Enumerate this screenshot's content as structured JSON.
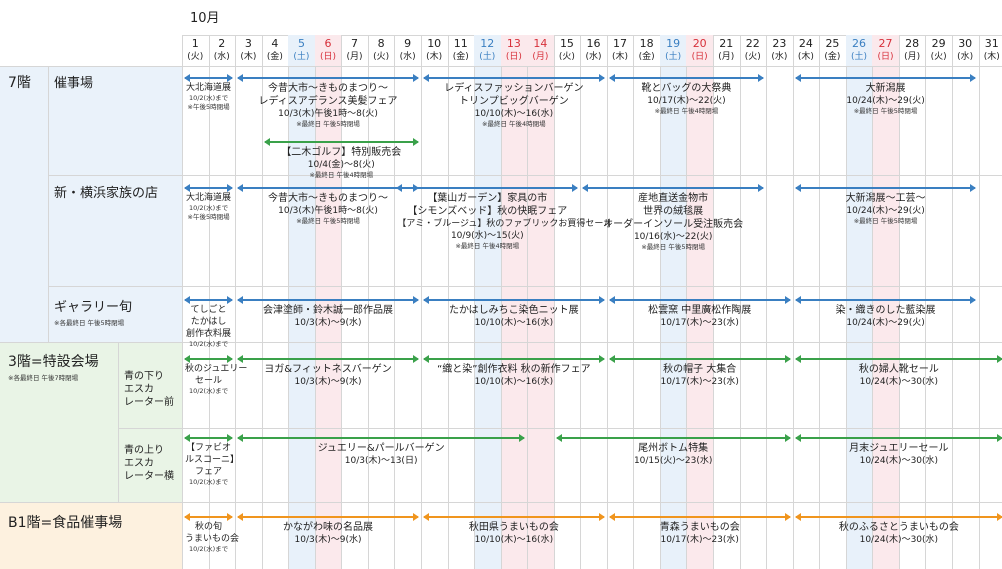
{
  "colors": {
    "blue_arrow": "#3a7fc1",
    "green_arrow": "#3aa14a",
    "orange_arrow": "#f0951e",
    "sat_text": "#3a7fc1",
    "sun_text": "#d7303a",
    "sat_band": "#e8f1fa",
    "sun_band": "#fbe9ec",
    "floor7_bg": "#eaf2fa",
    "floor3_bg": "#e9f4e6",
    "floorB1_bg": "#fdf1df"
  },
  "month": "10月",
  "days": [
    {
      "d": "1",
      "w": "(火)",
      "t": "n"
    },
    {
      "d": "2",
      "w": "(水)",
      "t": "n"
    },
    {
      "d": "3",
      "w": "(木)",
      "t": "n"
    },
    {
      "d": "4",
      "w": "(金)",
      "t": "n"
    },
    {
      "d": "5",
      "w": "(土)",
      "t": "sat"
    },
    {
      "d": "6",
      "w": "(日)",
      "t": "sun"
    },
    {
      "d": "7",
      "w": "(月)",
      "t": "n"
    },
    {
      "d": "8",
      "w": "(火)",
      "t": "n"
    },
    {
      "d": "9",
      "w": "(水)",
      "t": "n"
    },
    {
      "d": "10",
      "w": "(木)",
      "t": "n"
    },
    {
      "d": "11",
      "w": "(金)",
      "t": "n"
    },
    {
      "d": "12",
      "w": "(土)",
      "t": "sat"
    },
    {
      "d": "13",
      "w": "(日)",
      "t": "sun"
    },
    {
      "d": "14",
      "w": "(月)",
      "t": "sun"
    },
    {
      "d": "15",
      "w": "(火)",
      "t": "n"
    },
    {
      "d": "16",
      "w": "(水)",
      "t": "n"
    },
    {
      "d": "17",
      "w": "(木)",
      "t": "n"
    },
    {
      "d": "18",
      "w": "(金)",
      "t": "n"
    },
    {
      "d": "19",
      "w": "(土)",
      "t": "sat"
    },
    {
      "d": "20",
      "w": "(日)",
      "t": "sun"
    },
    {
      "d": "21",
      "w": "(月)",
      "t": "n"
    },
    {
      "d": "22",
      "w": "(火)",
      "t": "n"
    },
    {
      "d": "23",
      "w": "(水)",
      "t": "n"
    },
    {
      "d": "24",
      "w": "(木)",
      "t": "n"
    },
    {
      "d": "25",
      "w": "(金)",
      "t": "n"
    },
    {
      "d": "26",
      "w": "(土)",
      "t": "sat"
    },
    {
      "d": "27",
      "w": "(日)",
      "t": "sun"
    },
    {
      "d": "28",
      "w": "(月)",
      "t": "n"
    },
    {
      "d": "29",
      "w": "(火)",
      "t": "n"
    },
    {
      "d": "30",
      "w": "(水)",
      "t": "n"
    },
    {
      "d": "31",
      "w": "(木)",
      "t": "n"
    }
  ],
  "floors": {
    "f7": {
      "label": "7階"
    },
    "f3": {
      "label": "3階=特設会場",
      "note": "※各最終日 午後7時閉場"
    },
    "fb1": {
      "label": "B1階=食品催事場"
    }
  },
  "venues": {
    "saijijo": {
      "label": "催事場"
    },
    "shin_yokohama": {
      "label": "新・横浜家族の店"
    },
    "gallery": {
      "label": "ギャラリー旬",
      "note": "※各最終日 午後5時閉場"
    },
    "down_escalator": {
      "label": "青の下り\nエスカ\nレーター前"
    },
    "up_escalator": {
      "label": "青の上り\nエスカ\nレーター横"
    }
  },
  "events": [
    {
      "row": "saijijo",
      "color": "blue",
      "from": 1,
      "to": 2,
      "title": "",
      "lines": [
        {
          "k": "ed",
          "v": "大北海道展"
        },
        {
          "k": "en",
          "v": "10/2(水)まで"
        },
        {
          "k": "en",
          "v": "※午後5時閉場"
        }
      ]
    },
    {
      "row": "saijijo",
      "color": "blue",
      "from": 3,
      "to": 9,
      "lines": [
        {
          "k": "et",
          "v": "今昔大市～きものまつり～"
        },
        {
          "k": "et",
          "v": "レディスアデランス美髪フェア"
        },
        {
          "k": "ed",
          "v": "10/3(木)午後1時～8(火)"
        },
        {
          "k": "en",
          "v": "※最終日 午後5時閉場"
        }
      ]
    },
    {
      "row": "saijijo2",
      "color": "green",
      "from": 4,
      "to": 9,
      "lines": [
        {
          "k": "et",
          "v": "【二木ゴルフ】特別販売会"
        },
        {
          "k": "ed",
          "v": "10/4(金)～8(火)"
        },
        {
          "k": "en",
          "v": "※最終日 午後4時閉場"
        }
      ]
    },
    {
      "row": "saijijo",
      "color": "blue",
      "from": 10,
      "to": 16,
      "lines": [
        {
          "k": "et",
          "v": "レディスファッションバーゲン"
        },
        {
          "k": "et",
          "v": "トリンプビッグバーゲン"
        },
        {
          "k": "ed",
          "v": "10/10(木)～16(水)"
        },
        {
          "k": "en",
          "v": "※最終日 午後4時閉場"
        }
      ]
    },
    {
      "row": "saijijo",
      "color": "blue",
      "from": 17,
      "to": 22,
      "lines": [
        {
          "k": "et",
          "v": "靴とバッグの大祭典"
        },
        {
          "k": "ed",
          "v": "10/17(木)～22(火)"
        },
        {
          "k": "en",
          "v": "※最終日 午後4時閉場"
        }
      ]
    },
    {
      "row": "saijijo",
      "color": "blue",
      "from": 24,
      "to": 30,
      "lines": [
        {
          "k": "et",
          "v": "大新潟展"
        },
        {
          "k": "ed",
          "v": "10/24(木)～29(火)"
        },
        {
          "k": "en",
          "v": "※最終日 午後5時閉場"
        }
      ]
    },
    {
      "row": "shin_yokohama",
      "color": "blue",
      "from": 1,
      "to": 2,
      "lines": [
        {
          "k": "ed",
          "v": "大北海道展"
        },
        {
          "k": "en",
          "v": "10/2(水)まで"
        },
        {
          "k": "en",
          "v": "※午後5時閉場"
        }
      ]
    },
    {
      "row": "shin_yokohama",
      "color": "blue",
      "from": 3,
      "to": 9,
      "lines": [
        {
          "k": "et",
          "v": "今昔大市～きものまつり～"
        },
        {
          "k": "ed",
          "v": "10/3(木)午後1時～8(火)"
        },
        {
          "k": "en",
          "v": "※最終日 午後5時閉場"
        }
      ]
    },
    {
      "row": "shin_yokohama",
      "color": "blue",
      "from": 9,
      "to": 15,
      "lines": [
        {
          "k": "et",
          "v": "【葉山ガーデン】家具の市"
        },
        {
          "k": "et",
          "v": "【シモンズベッド】秋の快眠フェア"
        },
        {
          "k": "ed",
          "v": "【アミ・ブルージュ】秋のファブリックお買得セール"
        },
        {
          "k": "ed",
          "v": "10/9(水)～15(火)"
        },
        {
          "k": "en",
          "v": "※最終日 午後4時閉場"
        }
      ]
    },
    {
      "row": "shin_yokohama",
      "color": "blue",
      "from": 16,
      "to": 22,
      "lines": [
        {
          "k": "et",
          "v": "産地直送金物市"
        },
        {
          "k": "et",
          "v": "世界の絨毯展"
        },
        {
          "k": "et",
          "v": "オーダーインソール受注販売会"
        },
        {
          "k": "ed",
          "v": "10/16(水)～22(火)"
        },
        {
          "k": "en",
          "v": "※最終日 午後5時閉場"
        }
      ]
    },
    {
      "row": "shin_yokohama",
      "color": "blue",
      "from": 24,
      "to": 30,
      "lines": [
        {
          "k": "et",
          "v": "大新潟展～工芸～"
        },
        {
          "k": "ed",
          "v": "10/24(木)～29(火)"
        },
        {
          "k": "en",
          "v": "※最終日 午後5時閉場"
        }
      ]
    },
    {
      "row": "gallery",
      "color": "blue",
      "from": 1,
      "to": 2,
      "lines": [
        {
          "k": "ed",
          "v": "てしごと"
        },
        {
          "k": "ed",
          "v": "たかはし"
        },
        {
          "k": "ed",
          "v": "創作衣料展"
        },
        {
          "k": "en",
          "v": "10/2(水)まで"
        }
      ]
    },
    {
      "row": "gallery",
      "color": "blue",
      "from": 3,
      "to": 9,
      "lines": [
        {
          "k": "et",
          "v": "会津塗師・鈴木誠一郎作品展"
        },
        {
          "k": "ed",
          "v": "10/3(木)～9(水)"
        }
      ]
    },
    {
      "row": "gallery",
      "color": "blue",
      "from": 10,
      "to": 16,
      "lines": [
        {
          "k": "et",
          "v": "たかはしみちこ染色ニット展"
        },
        {
          "k": "ed",
          "v": "10/10(木)～16(水)"
        }
      ]
    },
    {
      "row": "gallery",
      "color": "blue",
      "from": 17,
      "to": 23,
      "lines": [
        {
          "k": "et",
          "v": "松雲窯 中里廣松作陶展"
        },
        {
          "k": "ed",
          "v": "10/17(木)～23(水)"
        }
      ]
    },
    {
      "row": "gallery",
      "color": "blue",
      "from": 24,
      "to": 30,
      "lines": [
        {
          "k": "et",
          "v": "染・織きのした藍染展"
        },
        {
          "k": "ed",
          "v": "10/24(木)～29(火)"
        }
      ]
    },
    {
      "row": "down_escalator",
      "color": "green",
      "from": 1,
      "to": 2,
      "lines": [
        {
          "k": "ed",
          "v": "秋のジュエリー"
        },
        {
          "k": "ed",
          "v": "セール"
        },
        {
          "k": "en",
          "v": "10/2(水)まで"
        }
      ]
    },
    {
      "row": "down_escalator",
      "color": "green",
      "from": 3,
      "to": 9,
      "lines": [
        {
          "k": "et",
          "v": "ヨガ&フィットネスバーゲン"
        },
        {
          "k": "ed",
          "v": "10/3(木)～9(水)"
        }
      ]
    },
    {
      "row": "down_escalator",
      "color": "green",
      "from": 10,
      "to": 16,
      "lines": [
        {
          "k": "et",
          "v": "“織と染”創作衣料 秋の新作フェア"
        },
        {
          "k": "ed",
          "v": "10/10(木)～16(水)"
        }
      ]
    },
    {
      "row": "down_escalator",
      "color": "green",
      "from": 17,
      "to": 23,
      "lines": [
        {
          "k": "et",
          "v": "秋の帽子 大集合"
        },
        {
          "k": "ed",
          "v": "10/17(木)～23(水)"
        }
      ]
    },
    {
      "row": "down_escalator",
      "color": "green",
      "from": 24,
      "to": 31,
      "lines": [
        {
          "k": "et",
          "v": "秋の婦人靴セール"
        },
        {
          "k": "ed",
          "v": "10/24(木)～30(水)"
        }
      ]
    },
    {
      "row": "up_escalator",
      "color": "green",
      "from": 1,
      "to": 2,
      "lines": [
        {
          "k": "ed",
          "v": "【ファビオ"
        },
        {
          "k": "ed",
          "v": "ルスコーニ】"
        },
        {
          "k": "ed",
          "v": "フェア"
        },
        {
          "k": "en",
          "v": "10/2(水)まで"
        }
      ]
    },
    {
      "row": "up_escalator",
      "color": "green",
      "from": 3,
      "to": 13,
      "lines": [
        {
          "k": "et",
          "v": "ジュエリー&パールバーゲン"
        },
        {
          "k": "ed",
          "v": "10/3(木)～13(日)"
        }
      ]
    },
    {
      "row": "up_escalator",
      "color": "green",
      "from": 15,
      "to": 23,
      "lines": [
        {
          "k": "et",
          "v": "尾州ボトム特集"
        },
        {
          "k": "ed",
          "v": "10/15(火)～23(水)"
        }
      ]
    },
    {
      "row": "up_escalator",
      "color": "green",
      "from": 24,
      "to": 31,
      "lines": [
        {
          "k": "et",
          "v": "月末ジュエリーセール"
        },
        {
          "k": "ed",
          "v": "10/24(木)～30(水)"
        }
      ]
    },
    {
      "row": "b1",
      "color": "orange",
      "from": 1,
      "to": 2,
      "lines": [
        {
          "k": "ed",
          "v": "秋の旬"
        },
        {
          "k": "ed",
          "v": "うまいもの会"
        },
        {
          "k": "en",
          "v": "10/2(水)まで"
        }
      ]
    },
    {
      "row": "b1",
      "color": "orange",
      "from": 3,
      "to": 9,
      "lines": [
        {
          "k": "et",
          "v": "かながわ味の名品展"
        },
        {
          "k": "ed",
          "v": "10/3(木)～9(水)"
        }
      ]
    },
    {
      "row": "b1",
      "color": "orange",
      "from": 10,
      "to": 16,
      "lines": [
        {
          "k": "et",
          "v": "秋田県うまいもの会"
        },
        {
          "k": "ed",
          "v": "10/10(木)～16(水)"
        }
      ]
    },
    {
      "row": "b1",
      "color": "orange",
      "from": 17,
      "to": 23,
      "lines": [
        {
          "k": "et",
          "v": "青森うまいもの会"
        },
        {
          "k": "ed",
          "v": "10/17(木)～23(水)"
        }
      ]
    },
    {
      "row": "b1",
      "color": "orange",
      "from": 24,
      "to": 31,
      "lines": [
        {
          "k": "et",
          "v": "秋のふるさとうまいもの会"
        },
        {
          "k": "ed",
          "v": "10/24(木)～30(水)"
        }
      ]
    }
  ]
}
